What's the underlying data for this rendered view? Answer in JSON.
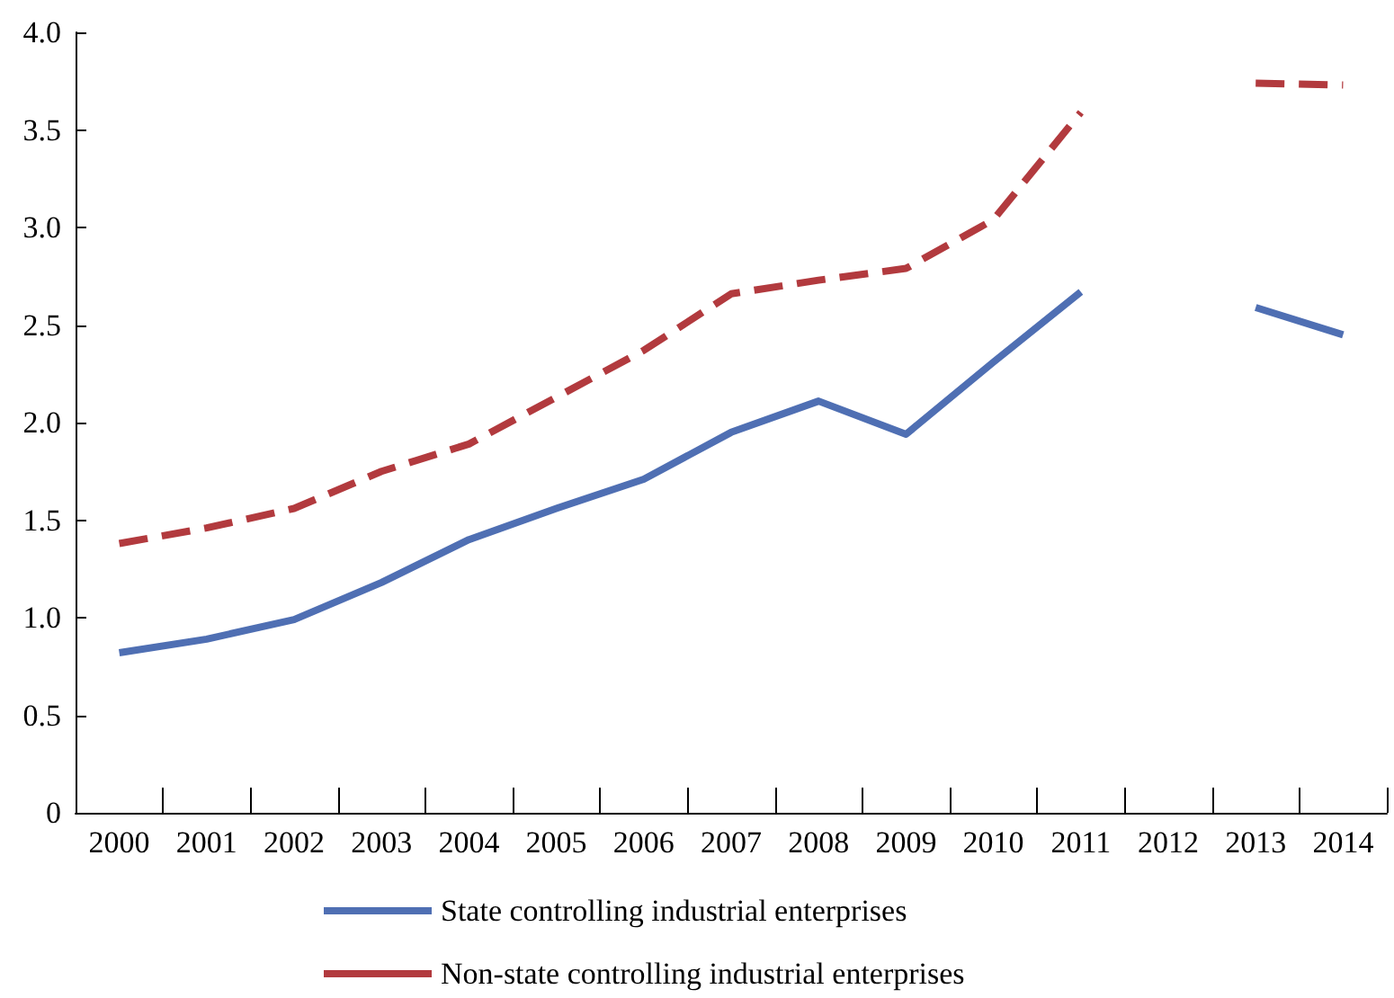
{
  "chart_data": {
    "type": "line",
    "categories": [
      "2000",
      "2001",
      "2002",
      "2003",
      "2004",
      "2005",
      "2006",
      "2007",
      "2008",
      "2009",
      "2010",
      "2011",
      "2012",
      "2013",
      "2014"
    ],
    "series": [
      {
        "name": "State controlling industrial enterprises",
        "color": "#4f6fb3",
        "line_style": "solid",
        "values": [
          0.82,
          0.89,
          0.99,
          1.18,
          1.4,
          1.56,
          1.71,
          1.95,
          2.11,
          1.94,
          2.31,
          2.67,
          null,
          2.59,
          2.45
        ]
      },
      {
        "name": "Non-state controlling industrial enterprises",
        "color": "#b23a3e",
        "line_style": "dashed",
        "values": [
          1.38,
          1.46,
          1.56,
          1.75,
          1.89,
          2.13,
          2.37,
          2.66,
          2.73,
          2.79,
          3.04,
          3.59,
          null,
          3.74,
          3.73
        ]
      }
    ],
    "ylim": [
      0,
      4
    ],
    "yticks": [
      0,
      0.5,
      {
        "value": 1,
        "label": "1.0"
      },
      1.5,
      {
        "value": 2,
        "label": "2.0"
      },
      2.5,
      {
        "value": 3,
        "label": "3.0"
      },
      3.5,
      {
        "value": 4,
        "label": "4.0"
      }
    ],
    "grid": false,
    "legend": "bottom",
    "marker": "none"
  }
}
